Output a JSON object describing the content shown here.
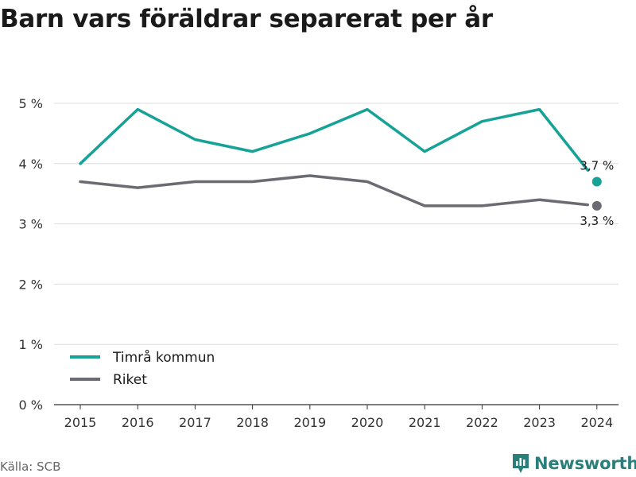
{
  "title": "Barn vars föräldrar separerat per år",
  "source": "Källa: SCB",
  "brand": "Newsworthy",
  "colors": {
    "teal": "#16a297",
    "gray": "#6b6b73",
    "grid": "#dddddd",
    "brand": "#2a7f7b"
  },
  "chart_data": {
    "type": "line",
    "categories": [
      "2015",
      "2016",
      "2017",
      "2018",
      "2019",
      "2020",
      "2021",
      "2022",
      "2023",
      "2024"
    ],
    "series": [
      {
        "name": "Timrå kommun",
        "color": "#16a297",
        "values": [
          4.0,
          4.9,
          4.4,
          4.2,
          4.5,
          4.9,
          4.2,
          4.7,
          4.9,
          3.7
        ]
      },
      {
        "name": "Riket",
        "color": "#6b6b73",
        "values": [
          3.7,
          3.6,
          3.7,
          3.7,
          3.8,
          3.7,
          3.3,
          3.3,
          3.4,
          3.3
        ]
      }
    ],
    "end_labels": [
      "3,7 %",
      "3,3 %"
    ],
    "y_ticks": [
      "0 %",
      "1 %",
      "2 %",
      "3 %",
      "4 %",
      "5 %"
    ],
    "ylim": [
      0,
      5
    ],
    "grid": true,
    "legend_position": "bottom-left"
  }
}
